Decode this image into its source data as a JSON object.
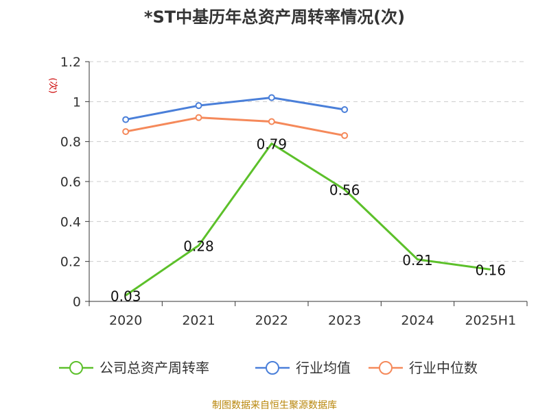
{
  "chart_data": {
    "type": "line",
    "title": "*ST中基历年总资产周转率情况(次)",
    "ylabel": "(次)",
    "xlabel": "",
    "categories": [
      "2020",
      "2021",
      "2022",
      "2023",
      "2024",
      "2025H1"
    ],
    "ylim": [
      0,
      1.2
    ],
    "yticks": [
      "0",
      "0.2",
      "0.4",
      "0.6",
      "0.8",
      "1",
      "1.2"
    ],
    "grid": true,
    "legend_position": "bottom",
    "series": [
      {
        "name": "公司总资产周转率",
        "color": "#5cc02a",
        "values": [
          0.03,
          0.28,
          0.79,
          0.56,
          0.21,
          0.16
        ],
        "labels": [
          "0.03",
          "0.28",
          "0.79",
          "0.56",
          "0.21",
          "0.16"
        ]
      },
      {
        "name": "行业均值",
        "color": "#4a7fd9",
        "values": [
          0.91,
          0.98,
          1.02,
          0.96,
          null,
          null
        ]
      },
      {
        "name": "行业中位数",
        "color": "#f5895a",
        "values": [
          0.85,
          0.92,
          0.9,
          0.83,
          null,
          null
        ]
      }
    ]
  },
  "source": "制图数据来自恒生聚源数据库"
}
